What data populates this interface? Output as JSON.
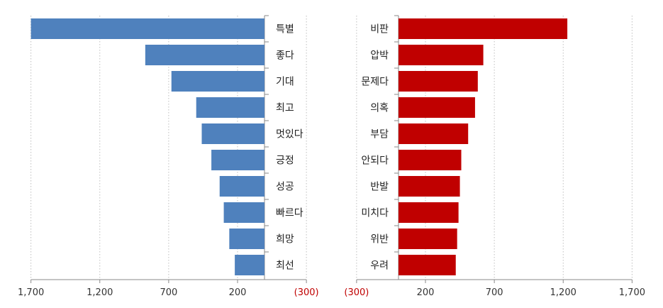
{
  "chart_data": [
    {
      "type": "bar",
      "orientation": "horizontal",
      "direction": "right-to-left",
      "categories": [
        "특별",
        "좋다",
        "기대",
        "최고",
        "멋있다",
        "긍정",
        "성공",
        "빠르다",
        "희망",
        "최선"
      ],
      "values": [
        1700,
        870,
        680,
        500,
        460,
        390,
        330,
        300,
        260,
        220
      ],
      "xlim": [
        -300,
        1700
      ],
      "xticks": [
        {
          "value": 1700,
          "label": "1,700"
        },
        {
          "value": 1200,
          "label": "1,200"
        },
        {
          "value": 700,
          "label": "700"
        },
        {
          "value": 200,
          "label": "200"
        },
        {
          "value": -300,
          "label": "(300)"
        }
      ],
      "color": "#4f81bd",
      "grid": "vertical-dotted",
      "title": "",
      "xlabel": "",
      "ylabel": ""
    },
    {
      "type": "bar",
      "orientation": "horizontal",
      "direction": "left-to-right",
      "categories": [
        "비판",
        "압박",
        "문제다",
        "의혹",
        "부담",
        "안되다",
        "반발",
        "미치다",
        "위반",
        "우려"
      ],
      "values": [
        1230,
        620,
        580,
        560,
        510,
        460,
        450,
        440,
        430,
        420
      ],
      "xlim": [
        -300,
        1700
      ],
      "xticks": [
        {
          "value": -300,
          "label": "(300)"
        },
        {
          "value": 200,
          "label": "200"
        },
        {
          "value": 700,
          "label": "700"
        },
        {
          "value": 1200,
          "label": "1,200"
        },
        {
          "value": 1700,
          "label": "1,700"
        }
      ],
      "color": "#c00000",
      "grid": "vertical-dotted",
      "title": "",
      "xlabel": "",
      "ylabel": ""
    }
  ]
}
